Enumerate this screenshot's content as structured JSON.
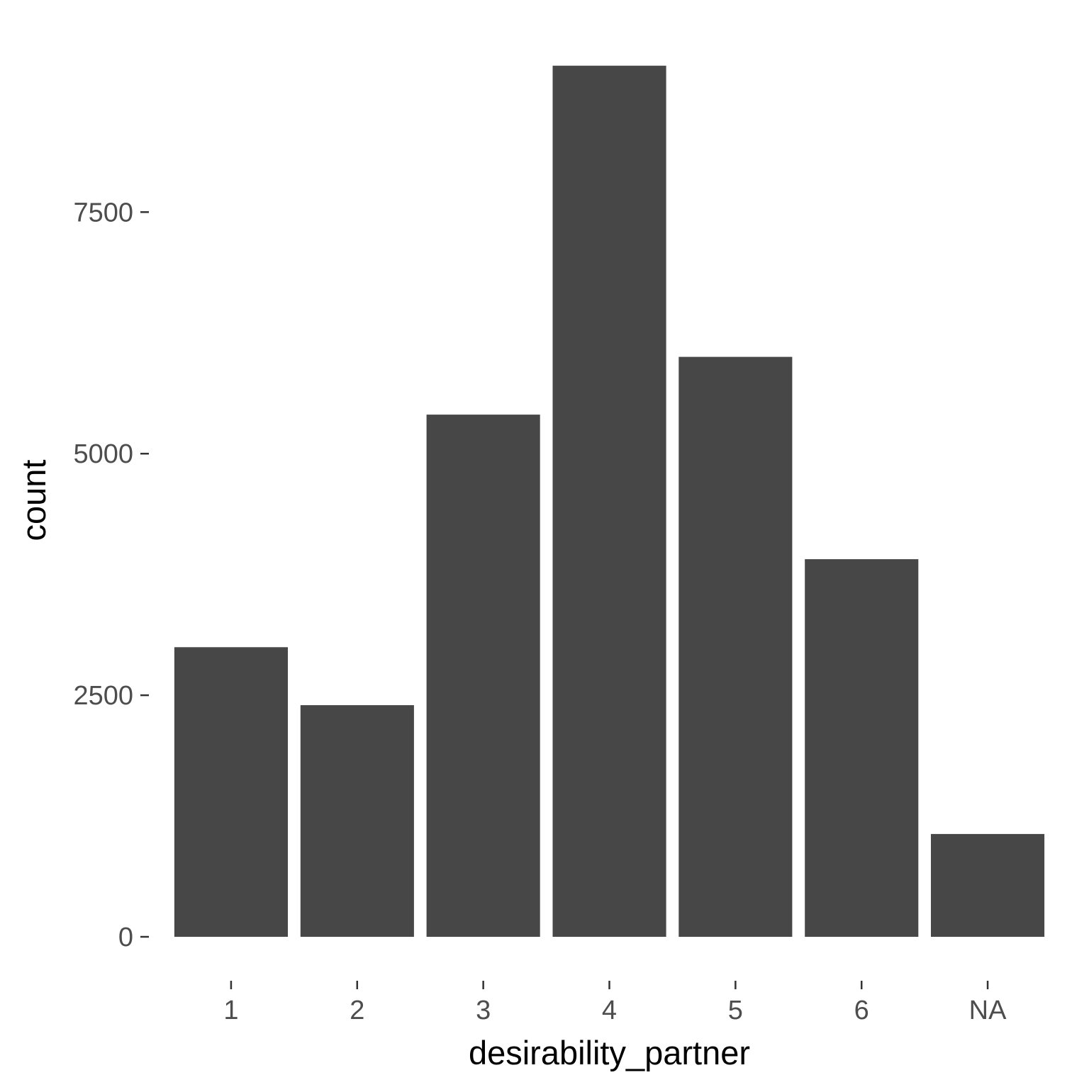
{
  "chart_data": {
    "type": "bar",
    "title": "",
    "xlabel": "desirability_partner",
    "ylabel": "count",
    "categories": [
      "1",
      "2",
      "3",
      "4",
      "5",
      "6",
      "NA"
    ],
    "values": [
      2997,
      2397,
      5404,
      9015,
      6002,
      3908,
      1064
    ],
    "ylim": [
      0,
      9465
    ],
    "yticks": [
      0,
      2500,
      5000,
      7500
    ],
    "ytick_labels": [
      "0",
      "2500",
      "5000",
      "7500"
    ],
    "grid": false,
    "legend": "none",
    "colors": {
      "bar": "#474747",
      "tick_label": "#4d4d4d",
      "axis_title": "#000000",
      "tick_mark": "#333333",
      "background": "#ffffff"
    }
  }
}
